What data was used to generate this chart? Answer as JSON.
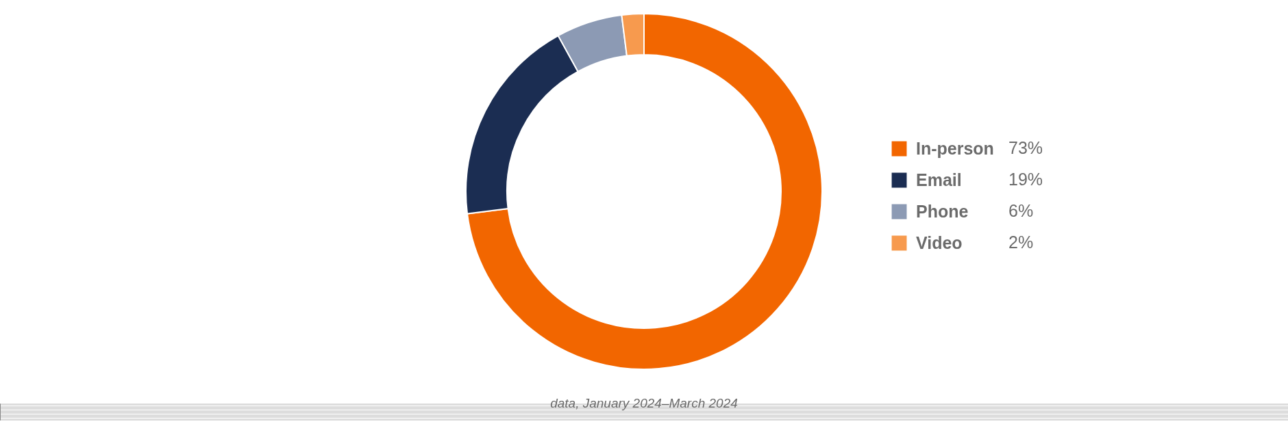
{
  "chart_data": {
    "type": "donut",
    "categories": [
      "In-person",
      "Email",
      "Phone",
      "Video"
    ],
    "values": [
      73,
      19,
      6,
      2
    ],
    "value_labels": [
      "73%",
      "19%",
      "6%",
      "2%"
    ],
    "colors": [
      "#f26600",
      "#1b2d52",
      "#8c9ab4",
      "#f79a4e"
    ],
    "legend": "right",
    "annotations": [
      "data, January 2024–March 2024"
    ]
  }
}
